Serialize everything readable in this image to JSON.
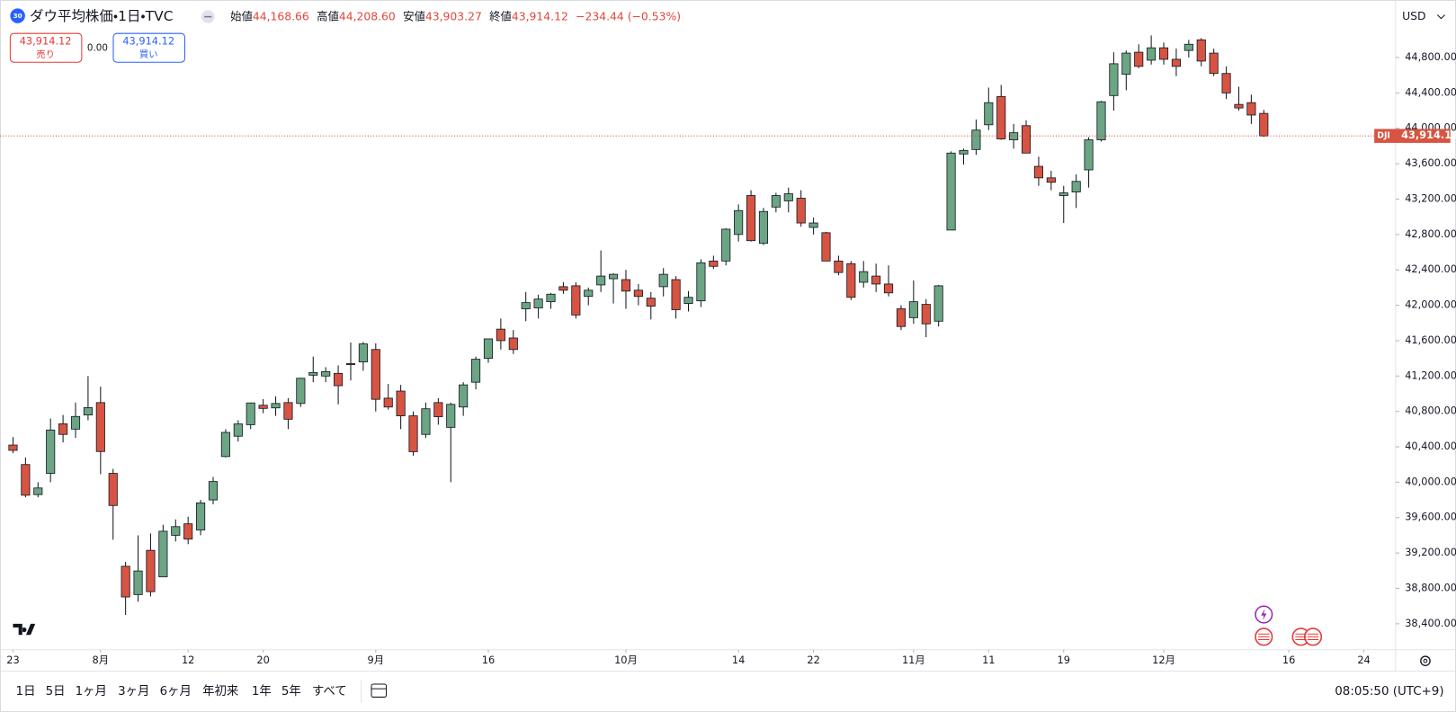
{
  "header": {
    "badge": "30",
    "ohlc": [
      {
        "label": "始値",
        "value": "44,168.66"
      },
      {
        "label": "高値",
        "value": "44,208.60"
      },
      {
        "label": "安値",
        "value": "43,903.27"
      },
      {
        "label": "終値",
        "value": "43,914.12"
      }
    ],
    "change": "−234.44 (−0.53%)"
  },
  "trade": {
    "sell_price": "43,914.12",
    "sell_label": "売り",
    "spread": "0.00",
    "buy_price": "43,914.12",
    "buy_label": "買い"
  },
  "currency": "USD",
  "toolbar": {
    "ranges": [
      "1日",
      "5日",
      "1ヶ月",
      "3ヶ月",
      "6ヶ月",
      "年初来",
      "1年",
      "5年",
      "すべて"
    ],
    "clock": "08:05:50 (UTC+9)"
  },
  "chart_data": {
    "type": "candlestick",
    "title": "ダウ平均株価・1日・TVC",
    "symbol": "DJI",
    "last_price_label": "43,914.12",
    "up_color": "#6ba583",
    "down_color": "#d75442",
    "grid": false,
    "open": [
      40420,
      40200,
      39860,
      40100,
      40660,
      40600,
      40760,
      40900,
      40100,
      39050,
      38730,
      39230,
      38930,
      39400,
      39530,
      39460,
      39800,
      40290,
      40520,
      40650,
      40870,
      40840,
      40900,
      40890,
      41210,
      41200,
      41230,
      41340,
      41360,
      41500,
      40950,
      41030,
      40750,
      40540,
      40900,
      40620,
      40850,
      41130,
      41400,
      41730,
      41630,
      41960,
      41970,
      42040,
      42210,
      42220,
      42100,
      42230,
      42300,
      42290,
      42170,
      42080,
      42210,
      42290,
      42020,
      42050,
      42500,
      42500,
      42800,
      43240,
      42700,
      43110,
      43180,
      43210,
      42880,
      42820,
      42500,
      42470,
      42260,
      42330,
      42240,
      41960,
      41860,
      42010,
      41820,
      42850,
      43710,
      43760,
      44040,
      44360,
      43870,
      44030,
      43570,
      43440,
      43240,
      43280,
      43530,
      43870,
      44370,
      44610,
      44860,
      44770,
      44910,
      44780,
      44880,
      45000,
      44850,
      44620,
      44270,
      44290,
      44168.66
    ],
    "high": [
      40510,
      40280,
      40000,
      40720,
      40760,
      40900,
      41200,
      41080,
      40150,
      39100,
      39400,
      39420,
      39520,
      39580,
      39610,
      39800,
      40060,
      40600,
      40700,
      40900,
      40940,
      40970,
      40950,
      41180,
      41420,
      41300,
      41320,
      41580,
      41585,
      41570,
      41110,
      41100,
      40800,
      40900,
      40950,
      40900,
      41130,
      41420,
      41620,
      41850,
      41720,
      42150,
      42120,
      42140,
      42260,
      42260,
      42200,
      42620,
      42360,
      42400,
      42240,
      42150,
      42420,
      42330,
      42160,
      42520,
      42560,
      42870,
      43140,
      43300,
      43100,
      43270,
      43330,
      43300,
      42990,
      42830,
      42560,
      42500,
      42500,
      42470,
      42450,
      42000,
      42280,
      42070,
      42230,
      43740,
      43770,
      44100,
      44460,
      44490,
      44050,
      44090,
      43680,
      43520,
      43350,
      43480,
      43900,
      44310,
      44860,
      44880,
      44950,
      45050,
      44970,
      44900,
      45000,
      45020,
      44900,
      44700,
      44470,
      44380,
      44208.6
    ],
    "low": [
      40330,
      39830,
      39830,
      40000,
      40450,
      40500,
      40700,
      40090,
      39350,
      38500,
      38650,
      38710,
      38930,
      39330,
      39300,
      39400,
      39750,
      40280,
      40460,
      40600,
      40780,
      40750,
      40600,
      40850,
      41130,
      41130,
      40880,
      41150,
      41260,
      40800,
      40820,
      40600,
      40300,
      40500,
      40650,
      40000,
      40750,
      41050,
      41350,
      41500,
      41450,
      41820,
      41850,
      41960,
      42130,
      41850,
      42000,
      42150,
      42020,
      41960,
      42000,
      41840,
      42100,
      41850,
      41930,
      41980,
      42410,
      42450,
      42720,
      42720,
      42680,
      43050,
      43050,
      42890,
      42800,
      42500,
      42340,
      42060,
      42200,
      42150,
      42100,
      41720,
      41790,
      41640,
      41760,
      42850,
      43590,
      43700,
      43980,
      43870,
      43770,
      43720,
      43350,
      43300,
      42930,
      43100,
      43330,
      43850,
      44200,
      44430,
      44680,
      44720,
      44720,
      44590,
      44800,
      44700,
      44590,
      44330,
      44200,
      44050,
      43903.27
    ],
    "close": [
      40360,
      39853,
      39935,
      40590,
      40540,
      40743,
      40843,
      40347,
      39737,
      38703,
      38997,
      38763,
      39446,
      39498,
      39357,
      39766,
      40008,
      40563,
      40659,
      40896,
      40834,
      40890,
      40712,
      41175,
      41240,
      41250,
      41091,
      41335,
      41563,
      40937,
      40850,
      40750,
      40345,
      40830,
      40740,
      40880,
      41100,
      41390,
      41620,
      41600,
      41500,
      42030,
      42070,
      42125,
      42170,
      41890,
      42170,
      42330,
      42350,
      42160,
      42100,
      41990,
      42350,
      41950,
      42090,
      42480,
      42440,
      42860,
      43070,
      42730,
      43060,
      43240,
      43260,
      42930,
      42930,
      42500,
      42370,
      42090,
      42380,
      42240,
      42140,
      41760,
      42040,
      41790,
      42220,
      43720,
      43750,
      43980,
      44290,
      43880,
      43950,
      43720,
      43440,
      43390,
      43270,
      43400,
      43870,
      44300,
      44730,
      44850,
      44700,
      44910,
      44780,
      44700,
      44950,
      44760,
      44620,
      44400,
      44230,
      44150,
      43914.12
    ],
    "xlim": [
      -1.04,
      110.54
    ],
    "xticks": [
      {
        "value": 0,
        "label": "23"
      },
      {
        "value": 7,
        "label": "8月"
      },
      {
        "value": 14,
        "label": "12"
      },
      {
        "value": 20,
        "label": "20"
      },
      {
        "value": 29,
        "label": "9月"
      },
      {
        "value": 38,
        "label": "16"
      },
      {
        "value": 49,
        "label": "10月"
      },
      {
        "value": 58,
        "label": "14"
      },
      {
        "value": 64,
        "label": "22"
      },
      {
        "value": 72,
        "label": "11月"
      },
      {
        "value": 78,
        "label": "11"
      },
      {
        "value": 84,
        "label": "19"
      },
      {
        "value": 92,
        "label": "12月"
      },
      {
        "value": 102,
        "label": "16"
      },
      {
        "value": 108,
        "label": "24"
      }
    ],
    "ylim": [
      38106,
      45450
    ],
    "yticks": [
      {
        "value": 38400,
        "label": "38,400.00"
      },
      {
        "value": 38800,
        "label": "38,800.00"
      },
      {
        "value": 39200,
        "label": "39,200.00"
      },
      {
        "value": 39600,
        "label": "39,600.00"
      },
      {
        "value": 40000,
        "label": "40,000.00"
      },
      {
        "value": 40400,
        "label": "40,400.00"
      },
      {
        "value": 40800,
        "label": "40,800.00"
      },
      {
        "value": 41200,
        "label": "41,200.00"
      },
      {
        "value": 41600,
        "label": "41,600.00"
      },
      {
        "value": 42000,
        "label": "42,000.00"
      },
      {
        "value": 42400,
        "label": "42,400.00"
      },
      {
        "value": 42800,
        "label": "42,800.00"
      },
      {
        "value": 43200,
        "label": "43,200.00"
      },
      {
        "value": 43600,
        "label": "43,600.00"
      },
      {
        "value": 44000,
        "label": "44,000.00"
      },
      {
        "value": 44400,
        "label": "44,400.00"
      },
      {
        "value": 44800,
        "label": "44,800.00"
      }
    ]
  }
}
